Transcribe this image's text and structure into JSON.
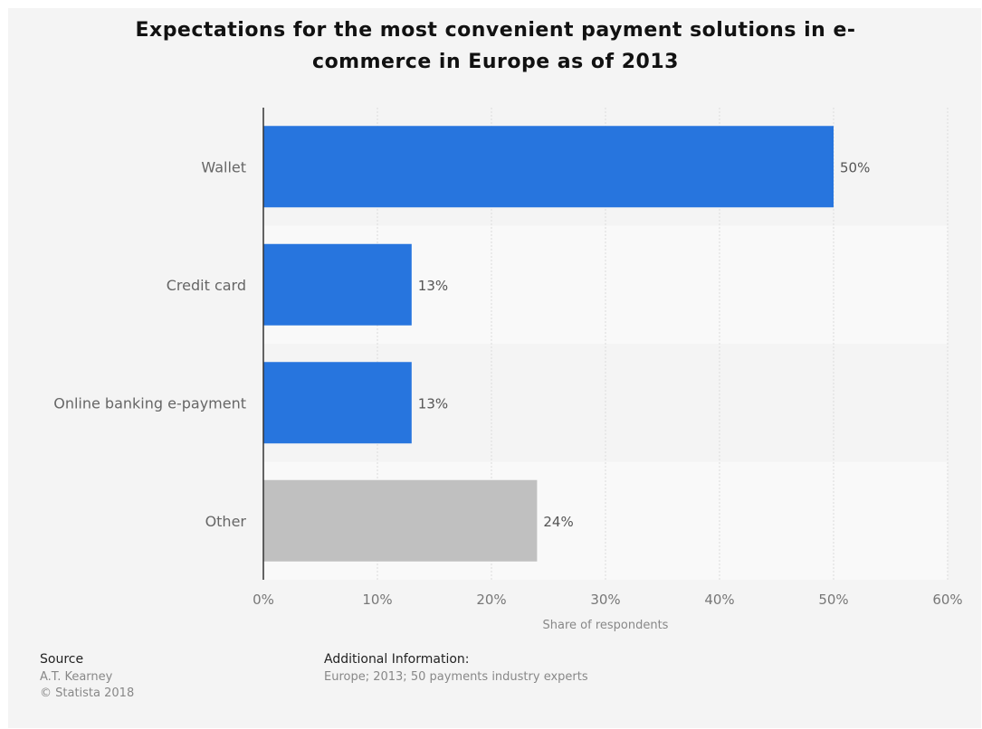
{
  "chart_data": {
    "type": "bar",
    "orientation": "horizontal",
    "title_lines": [
      "Expectations for the most convenient payment solutions in e-",
      "commerce in Europe as of 2013"
    ],
    "categories": [
      "Wallet",
      "Credit card",
      "Online banking e-payment",
      "Other"
    ],
    "values": [
      50,
      13,
      13,
      24
    ],
    "value_labels": [
      "50%",
      "13%",
      "13%",
      "24%"
    ],
    "bar_colors": [
      "#2775de",
      "#2775de",
      "#2775de",
      "#c0c0c0"
    ],
    "xlabel": "Share of respondents",
    "xlim": [
      0,
      60
    ],
    "xticks": [
      0,
      10,
      20,
      30,
      40,
      50,
      60
    ],
    "xtick_labels": [
      "0%",
      "10%",
      "20%",
      "30%",
      "40%",
      "50%",
      "60%"
    ],
    "grid": true
  },
  "footer": {
    "source_heading": "Source",
    "source_lines": [
      "A.T. Kearney",
      "© Statista 2018"
    ],
    "info_heading": "Additional Information:",
    "info_text": "Europe; 2013; 50  payments industry experts"
  }
}
